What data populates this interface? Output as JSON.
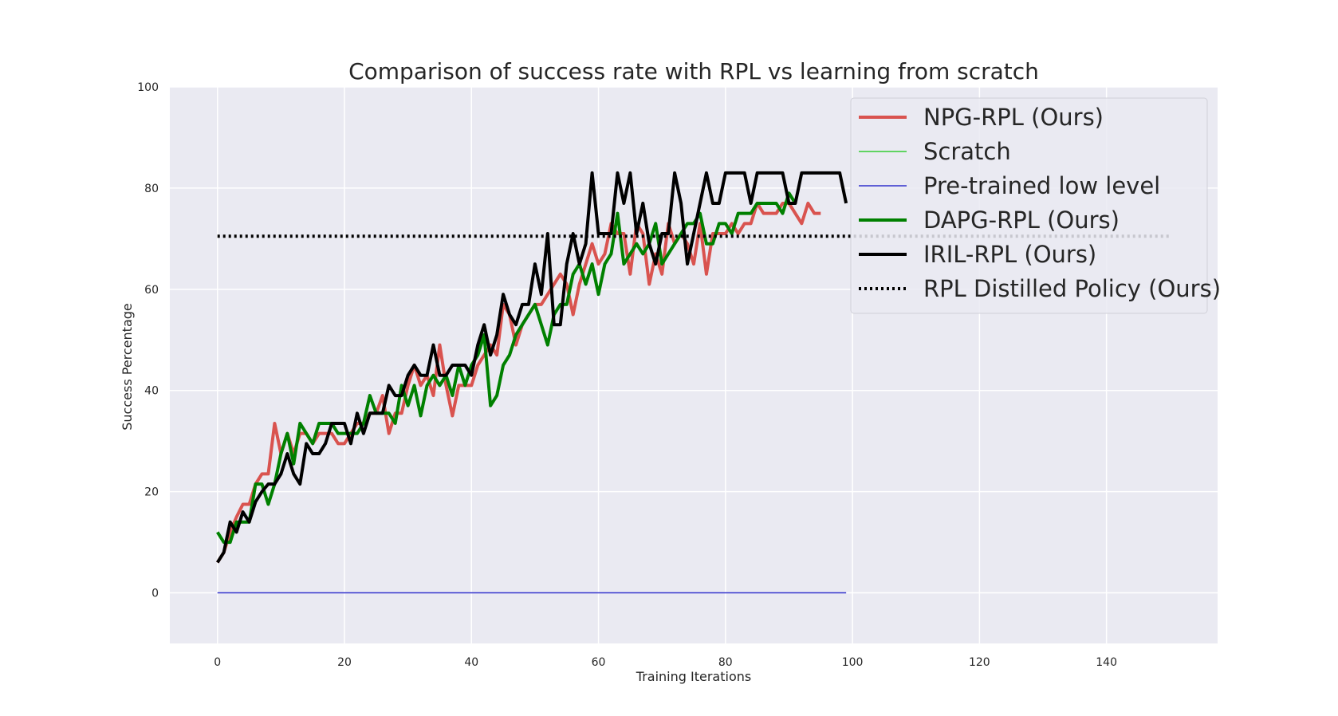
{
  "chart_data": {
    "type": "line",
    "title": "Comparison of success rate with RPL vs learning from scratch",
    "xlabel": "Training Iterations",
    "ylabel": "Success Percentage",
    "xlim": [
      -7.5,
      157.5
    ],
    "ylim": [
      -10,
      100
    ],
    "xticks": [
      0,
      20,
      40,
      60,
      80,
      100,
      120,
      140
    ],
    "yticks": [
      0,
      20,
      40,
      60,
      80,
      100
    ],
    "grid": true,
    "legend_position": "top-right",
    "background_color": "#eaeaf2",
    "series": [
      {
        "name": "NPG-RPL (Ours)",
        "color": "#d9534f",
        "width": "thick",
        "style": "solid",
        "x": [
          0,
          1,
          2,
          3,
          4,
          5,
          6,
          7,
          8,
          9,
          10,
          11,
          12,
          13,
          14,
          15,
          16,
          17,
          18,
          19,
          20,
          21,
          22,
          23,
          24,
          25,
          26,
          27,
          28,
          29,
          30,
          31,
          32,
          33,
          34,
          35,
          36,
          37,
          38,
          39,
          40,
          41,
          42,
          43,
          44,
          45,
          46,
          47,
          48,
          49,
          50,
          51,
          52,
          53,
          54,
          55,
          56,
          57,
          58,
          59,
          60,
          61,
          62,
          63,
          64,
          65,
          66,
          67,
          68,
          69,
          70,
          71,
          72,
          73,
          74,
          75,
          76,
          77,
          78,
          79,
          80,
          81,
          82,
          83,
          84,
          85,
          86,
          87,
          88,
          89,
          90,
          91,
          92,
          93,
          94,
          95
        ],
        "y": [
          6,
          8,
          12,
          15,
          17.5,
          17.5,
          21.5,
          23.5,
          23.5,
          33.5,
          27.5,
          31.5,
          27.5,
          31.5,
          31.5,
          29.5,
          31.5,
          31.5,
          31.5,
          29.5,
          29.5,
          31.5,
          33.5,
          33.5,
          35.5,
          35.5,
          39,
          31.5,
          35.5,
          35.5,
          41,
          45,
          41,
          43,
          39,
          49,
          41,
          35,
          41,
          41,
          41,
          45,
          47,
          49,
          47,
          57,
          55,
          49,
          53,
          55,
          57,
          57,
          59,
          61,
          63,
          61,
          55,
          61,
          65,
          69,
          65,
          67,
          73,
          71,
          71,
          63,
          73,
          71,
          61,
          67,
          63,
          73,
          69,
          71,
          69,
          65,
          73,
          63,
          71,
          71,
          71,
          73,
          71,
          73,
          73,
          77,
          75,
          75,
          75,
          77,
          77,
          75,
          73,
          77,
          75,
          75
        ]
      },
      {
        "name": "Scratch",
        "color": "#33cc33",
        "width": "thin",
        "style": "solid",
        "x": [],
        "y": []
      },
      {
        "name": "Pre-trained low level",
        "color": "#3333cc",
        "width": "thin",
        "style": "solid",
        "x": [
          0,
          99
        ],
        "y": [
          0,
          0
        ]
      },
      {
        "name": "DAPG-RPL (Ours)",
        "color": "#008000",
        "width": "thick",
        "style": "solid",
        "x": [
          0,
          1,
          2,
          3,
          4,
          5,
          6,
          7,
          8,
          9,
          10,
          11,
          12,
          13,
          14,
          15,
          16,
          17,
          18,
          19,
          20,
          21,
          22,
          23,
          24,
          25,
          26,
          27,
          28,
          29,
          30,
          31,
          32,
          33,
          34,
          35,
          36,
          37,
          38,
          39,
          40,
          41,
          42,
          43,
          44,
          45,
          46,
          47,
          48,
          49,
          50,
          51,
          52,
          53,
          54,
          55,
          56,
          57,
          58,
          59,
          60,
          61,
          62,
          63,
          64,
          65,
          66,
          67,
          68,
          69,
          70,
          71,
          72,
          73,
          74,
          75,
          76,
          77,
          78,
          79,
          80,
          81,
          82,
          83,
          84,
          85,
          86,
          87,
          88,
          89,
          90,
          91
        ],
        "y": [
          12,
          10,
          10,
          14,
          14,
          14,
          21.5,
          21.5,
          17.5,
          21.5,
          27.5,
          31.5,
          25.5,
          33.5,
          31.5,
          29.5,
          33.5,
          33.5,
          33.5,
          31.5,
          31.5,
          31.5,
          31.5,
          33.5,
          39,
          35.5,
          35.5,
          35.5,
          33.5,
          41,
          37,
          41,
          35,
          41,
          43,
          41,
          43,
          39,
          45,
          41,
          45,
          47,
          51,
          37,
          39,
          45,
          47,
          51,
          53,
          55,
          57,
          53,
          49,
          55,
          57,
          57,
          63,
          65,
          61,
          65,
          59,
          65,
          67,
          75,
          65,
          67,
          69,
          67,
          69,
          73,
          65,
          67,
          69,
          71,
          73,
          73,
          75,
          69,
          69,
          73,
          73,
          71,
          75,
          75,
          75,
          77,
          77,
          77,
          77,
          75,
          79,
          77
        ]
      },
      {
        "name": "IRIL-RPL (Ours)",
        "color": "#000000",
        "width": "thick",
        "style": "solid",
        "x": [
          0,
          1,
          2,
          3,
          4,
          5,
          6,
          7,
          8,
          9,
          10,
          11,
          12,
          13,
          14,
          15,
          16,
          17,
          18,
          19,
          20,
          21,
          22,
          23,
          24,
          25,
          26,
          27,
          28,
          29,
          30,
          31,
          32,
          33,
          34,
          35,
          36,
          37,
          38,
          39,
          40,
          41,
          42,
          43,
          44,
          45,
          46,
          47,
          48,
          49,
          50,
          51,
          52,
          53,
          54,
          55,
          56,
          57,
          58,
          59,
          60,
          61,
          62,
          63,
          64,
          65,
          66,
          67,
          68,
          69,
          70,
          71,
          72,
          73,
          74,
          75,
          76,
          77,
          78,
          79,
          80,
          81,
          82,
          83,
          84,
          85,
          86,
          87,
          88,
          89,
          90,
          91,
          92,
          93,
          94,
          95,
          96,
          97,
          98,
          99
        ],
        "y": [
          6,
          8,
          14,
          12,
          16,
          14,
          18,
          20,
          21.5,
          21.5,
          23.5,
          27.5,
          23.5,
          21.5,
          29.5,
          27.5,
          27.5,
          29.5,
          33.5,
          33.5,
          33.5,
          29.5,
          35.5,
          31.5,
          35.5,
          35.5,
          35.5,
          41,
          39,
          39,
          43,
          45,
          43,
          43,
          49,
          43,
          43,
          45,
          45,
          45,
          43,
          49,
          53,
          47,
          51,
          59,
          55,
          53,
          57,
          57,
          65,
          59,
          71,
          53,
          53,
          65,
          71,
          65,
          69,
          83,
          71,
          71,
          71,
          83,
          77,
          83,
          71,
          77,
          69,
          65,
          71,
          71,
          83,
          77,
          65,
          71,
          77,
          83,
          77,
          77,
          83,
          83,
          83,
          83,
          77,
          83,
          83,
          83,
          83,
          83,
          77,
          77,
          83,
          83,
          83,
          83,
          83,
          83,
          83,
          77
        ]
      },
      {
        "name": "RPL Distilled Policy (Ours)",
        "color": "#000000",
        "width": "thick",
        "style": "dotted",
        "x": [
          0,
          150
        ],
        "y": [
          70.5,
          70.5
        ]
      }
    ]
  }
}
